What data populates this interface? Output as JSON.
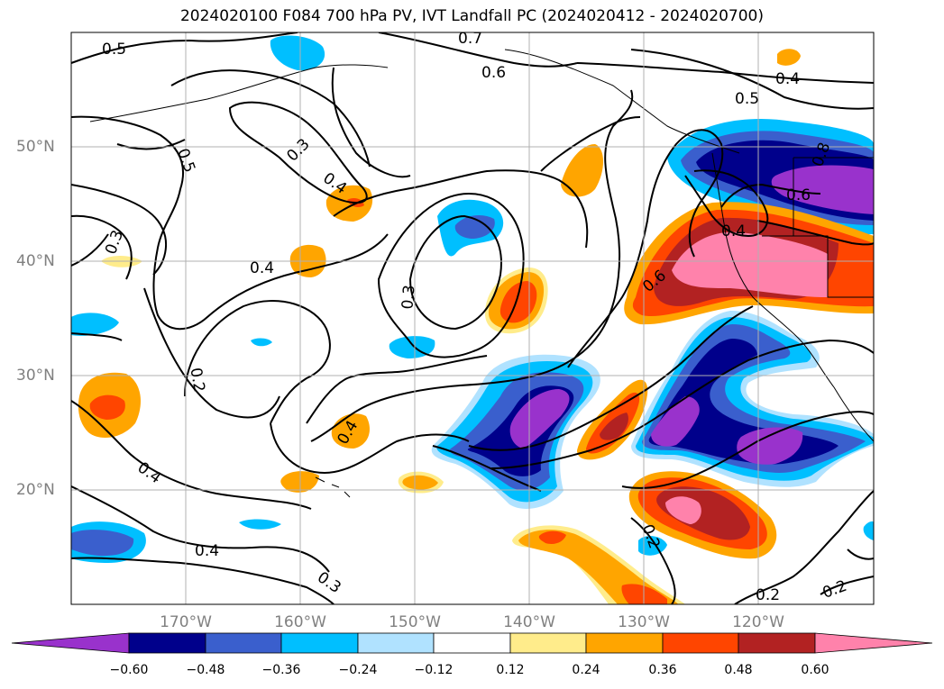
{
  "title": "2024020100 F084 700 hPa PV, IVT Landfall PC (2024020412 - 2024020700)",
  "map": {
    "lon_labels": [
      "170°W",
      "160°W",
      "150°W",
      "140°W",
      "130°W",
      "120°W"
    ],
    "lat_labels": [
      "50°N",
      "40°N",
      "30°N",
      "20°N"
    ],
    "contour_labels": [
      "0.5",
      "0.7",
      "0.6",
      "0.4",
      "0.5",
      "0.3",
      "0.5",
      "0.4",
      "0.4",
      "0.8",
      "0.6",
      "0.3",
      "0.4",
      "0.6",
      "0.4",
      "0.3",
      "0.2",
      "0.4",
      "0.4",
      "0.3",
      "0.2",
      "0.2",
      "0.2",
      "0.2"
    ],
    "grid": true
  },
  "colorbar": {
    "ticks": [
      "−0.60",
      "−0.48",
      "−0.36",
      "−0.24",
      "−0.12",
      "0.12",
      "0.24",
      "0.36",
      "0.48",
      "0.60"
    ],
    "colors": [
      "#9932cc",
      "#00008b",
      "#3a5fcd",
      "#00bfff",
      "#b0e2ff",
      "#ffffff",
      "#ffec8b",
      "#ffa500",
      "#ff4500",
      "#b22222",
      "#ff82ab"
    ],
    "extend": "both"
  }
}
